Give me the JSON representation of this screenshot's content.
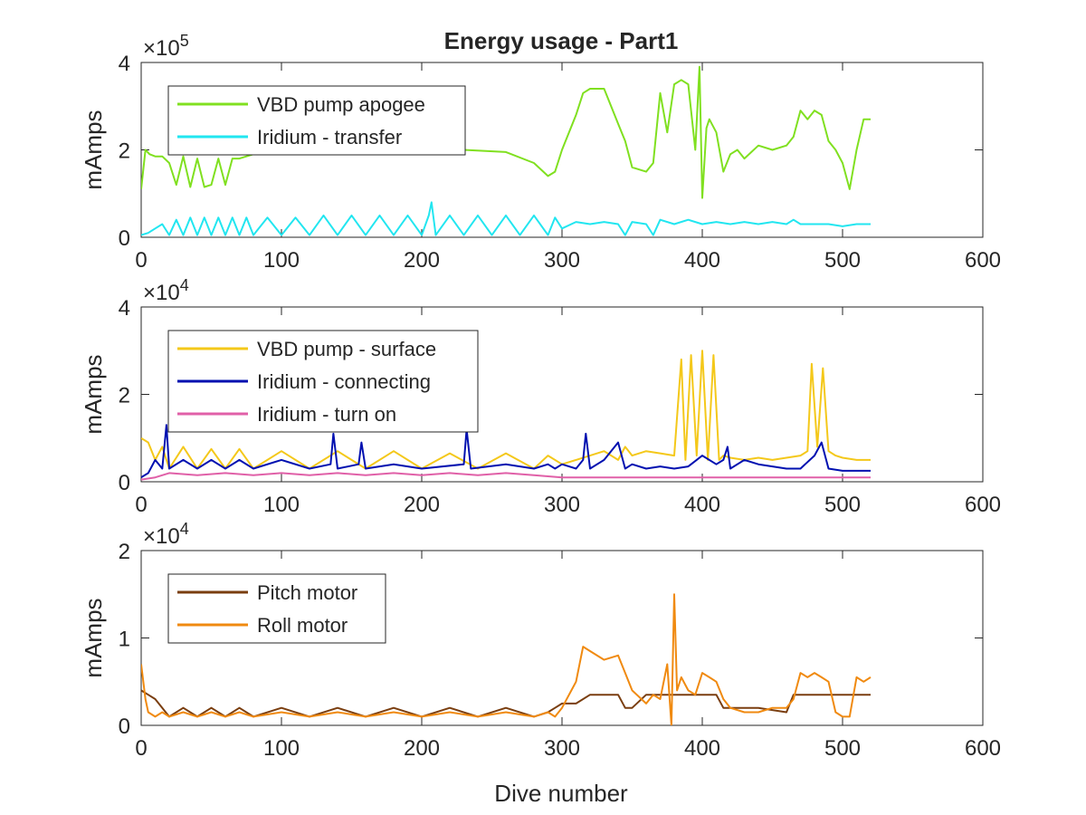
{
  "chart_data": {
    "type": "line",
    "title": "Energy usage - Part1",
    "xlabel": "Dive number",
    "panels": [
      {
        "id": "p1",
        "ylabel": "mAmps",
        "exponent_base": "×10",
        "exponent_power": "5",
        "xlim": [
          0,
          600
        ],
        "ylim": [
          0,
          4
        ],
        "xticks": [
          "0",
          "100",
          "200",
          "300",
          "400",
          "500",
          "600"
        ],
        "yticks": [
          "0",
          "2",
          "4"
        ],
        "grid": false,
        "legend_position": "top-left",
        "series": [
          {
            "name": "VBD pump apogee",
            "color": "#80e020",
            "x": [
              0,
              3,
              6,
              10,
              15,
              20,
              25,
              30,
              35,
              40,
              45,
              50,
              55,
              60,
              65,
              70,
              80,
              100,
              120,
              150,
              180,
              200,
              230,
              260,
              280,
              290,
              295,
              300,
              310,
              315,
              320,
              330,
              340,
              345,
              350,
              360,
              365,
              370,
              375,
              380,
              385,
              390,
              395,
              398,
              400,
              403,
              405,
              410,
              415,
              420,
              425,
              430,
              440,
              450,
              460,
              465,
              470,
              475,
              480,
              485,
              490,
              495,
              500,
              505,
              510,
              515,
              520
            ],
            "y": [
              1.1,
              2.0,
              1.9,
              1.85,
              1.85,
              1.7,
              1.2,
              1.85,
              1.15,
              1.8,
              1.15,
              1.2,
              1.8,
              1.2,
              1.8,
              1.8,
              1.9,
              1.95,
              2.0,
              2.05,
              2.0,
              2.05,
              2.0,
              1.95,
              1.7,
              1.4,
              1.5,
              2.0,
              2.8,
              3.3,
              3.4,
              3.4,
              2.6,
              2.2,
              1.6,
              1.5,
              1.7,
              3.3,
              2.4,
              3.5,
              3.6,
              3.5,
              2.0,
              3.9,
              0.9,
              2.5,
              2.7,
              2.4,
              1.5,
              1.9,
              2.0,
              1.8,
              2.1,
              2.0,
              2.1,
              2.3,
              2.9,
              2.7,
              2.9,
              2.8,
              2.2,
              2.0,
              1.7,
              1.1,
              2.0,
              2.7,
              2.7
            ]
          },
          {
            "name": "Iridium - transfer",
            "color": "#22e6f0",
            "x": [
              0,
              5,
              10,
              15,
              20,
              25,
              30,
              35,
              40,
              45,
              50,
              55,
              60,
              65,
              70,
              75,
              80,
              90,
              100,
              110,
              120,
              130,
              140,
              150,
              160,
              170,
              180,
              190,
              200,
              205,
              207,
              210,
              220,
              230,
              240,
              250,
              260,
              270,
              280,
              290,
              295,
              300,
              310,
              320,
              330,
              340,
              345,
              350,
              360,
              365,
              370,
              380,
              390,
              400,
              410,
              420,
              430,
              440,
              450,
              460,
              465,
              470,
              480,
              490,
              500,
              510,
              520
            ],
            "y": [
              0.05,
              0.1,
              0.2,
              0.3,
              0.05,
              0.4,
              0.05,
              0.45,
              0.05,
              0.45,
              0.05,
              0.45,
              0.05,
              0.45,
              0.05,
              0.45,
              0.05,
              0.45,
              0.05,
              0.45,
              0.05,
              0.5,
              0.05,
              0.5,
              0.05,
              0.5,
              0.05,
              0.5,
              0.05,
              0.5,
              0.8,
              0.05,
              0.5,
              0.05,
              0.5,
              0.05,
              0.5,
              0.05,
              0.5,
              0.05,
              0.45,
              0.2,
              0.35,
              0.3,
              0.35,
              0.3,
              0.05,
              0.35,
              0.3,
              0.05,
              0.4,
              0.3,
              0.4,
              0.3,
              0.35,
              0.3,
              0.35,
              0.3,
              0.35,
              0.3,
              0.4,
              0.3,
              0.3,
              0.3,
              0.25,
              0.3,
              0.3
            ]
          }
        ]
      },
      {
        "id": "p2",
        "ylabel": "mAmps",
        "exponent_base": "×10",
        "exponent_power": "4",
        "xlim": [
          0,
          600
        ],
        "ylim": [
          0,
          4
        ],
        "xticks": [
          "0",
          "100",
          "200",
          "300",
          "400",
          "500",
          "600"
        ],
        "yticks": [
          "0",
          "2",
          "4"
        ],
        "grid": false,
        "legend_position": "top-left",
        "series": [
          {
            "name": "VBD pump - surface",
            "color": "#f4c81a",
            "x": [
              0,
              5,
              10,
              15,
              20,
              30,
              40,
              50,
              60,
              70,
              80,
              100,
              120,
              140,
              160,
              180,
              200,
              220,
              240,
              260,
              280,
              290,
              300,
              310,
              320,
              330,
              340,
              345,
              350,
              360,
              370,
              380,
              385,
              388,
              392,
              396,
              400,
              404,
              408,
              412,
              415,
              420,
              430,
              440,
              450,
              460,
              470,
              475,
              478,
              482,
              486,
              490,
              495,
              500,
              510,
              520
            ],
            "y": [
              1.0,
              0.9,
              0.5,
              0.8,
              0.3,
              0.8,
              0.3,
              0.75,
              0.3,
              0.75,
              0.3,
              0.7,
              0.3,
              0.7,
              0.3,
              0.7,
              0.3,
              0.65,
              0.3,
              0.65,
              0.3,
              0.6,
              0.4,
              0.5,
              0.6,
              0.7,
              0.5,
              0.8,
              0.6,
              0.7,
              0.65,
              0.6,
              2.8,
              0.5,
              2.9,
              0.6,
              3.0,
              0.5,
              2.9,
              0.5,
              0.6,
              0.55,
              0.5,
              0.55,
              0.5,
              0.55,
              0.6,
              0.7,
              2.7,
              0.8,
              2.6,
              0.7,
              0.6,
              0.55,
              0.5,
              0.5
            ]
          },
          {
            "name": "Iridium - connecting",
            "color": "#0010b0",
            "x": [
              0,
              5,
              10,
              15,
              18,
              20,
              30,
              40,
              50,
              60,
              70,
              80,
              100,
              120,
              135,
              137,
              140,
              155,
              157,
              160,
              180,
              200,
              230,
              232,
              235,
              260,
              280,
              290,
              295,
              300,
              310,
              315,
              317,
              320,
              330,
              340,
              345,
              350,
              360,
              370,
              380,
              390,
              400,
              410,
              415,
              418,
              420,
              430,
              440,
              450,
              460,
              470,
              480,
              485,
              490,
              500,
              510,
              520
            ],
            "y": [
              0.1,
              0.2,
              0.5,
              0.3,
              1.3,
              0.3,
              0.5,
              0.3,
              0.5,
              0.3,
              0.5,
              0.3,
              0.5,
              0.3,
              0.4,
              1.1,
              0.3,
              0.4,
              0.9,
              0.3,
              0.4,
              0.3,
              0.4,
              1.2,
              0.3,
              0.4,
              0.3,
              0.4,
              0.3,
              0.4,
              0.3,
              0.5,
              1.1,
              0.3,
              0.5,
              0.9,
              0.3,
              0.4,
              0.3,
              0.35,
              0.3,
              0.35,
              0.6,
              0.4,
              0.5,
              0.8,
              0.3,
              0.5,
              0.4,
              0.35,
              0.3,
              0.3,
              0.6,
              0.9,
              0.3,
              0.25,
              0.25,
              0.25
            ]
          },
          {
            "name": "Iridium - turn on",
            "color": "#e060a8",
            "x": [
              0,
              10,
              20,
              40,
              60,
              80,
              100,
              120,
              140,
              160,
              180,
              200,
              220,
              240,
              260,
              280,
              300,
              320,
              340,
              360,
              380,
              400,
              420,
              440,
              460,
              480,
              500,
              520
            ],
            "y": [
              0.05,
              0.1,
              0.2,
              0.15,
              0.2,
              0.15,
              0.2,
              0.15,
              0.2,
              0.15,
              0.2,
              0.15,
              0.2,
              0.15,
              0.2,
              0.15,
              0.1,
              0.1,
              0.1,
              0.1,
              0.1,
              0.1,
              0.1,
              0.1,
              0.1,
              0.1,
              0.1,
              0.1
            ]
          }
        ]
      },
      {
        "id": "p3",
        "ylabel": "mAmps",
        "exponent_base": "×10",
        "exponent_power": "4",
        "xlim": [
          0,
          600
        ],
        "ylim": [
          0,
          2
        ],
        "xticks": [
          "0",
          "100",
          "200",
          "300",
          "400",
          "500",
          "600"
        ],
        "yticks": [
          "0",
          "1",
          "2"
        ],
        "grid": false,
        "legend_position": "top-left",
        "series": [
          {
            "name": "Pitch motor",
            "color": "#7a3e10",
            "x": [
              0,
              5,
              10,
              15,
              20,
              30,
              40,
              50,
              60,
              70,
              80,
              100,
              120,
              140,
              160,
              180,
              200,
              220,
              240,
              260,
              280,
              290,
              295,
              300,
              310,
              320,
              330,
              340,
              345,
              350,
              360,
              380,
              400,
              410,
              415,
              420,
              440,
              460,
              465,
              470,
              480,
              500,
              510,
              520
            ],
            "y": [
              0.4,
              0.35,
              0.3,
              0.2,
              0.1,
              0.2,
              0.1,
              0.2,
              0.1,
              0.2,
              0.1,
              0.2,
              0.1,
              0.2,
              0.1,
              0.2,
              0.1,
              0.2,
              0.1,
              0.2,
              0.1,
              0.15,
              0.2,
              0.25,
              0.25,
              0.35,
              0.35,
              0.35,
              0.2,
              0.2,
              0.35,
              0.35,
              0.35,
              0.35,
              0.2,
              0.2,
              0.2,
              0.15,
              0.35,
              0.35,
              0.35,
              0.35,
              0.35,
              0.35
            ]
          },
          {
            "name": "Roll motor",
            "color": "#f08a10",
            "x": [
              0,
              3,
              5,
              10,
              15,
              20,
              30,
              40,
              50,
              60,
              70,
              80,
              100,
              120,
              140,
              160,
              180,
              200,
              220,
              240,
              260,
              280,
              290,
              295,
              300,
              310,
              315,
              320,
              330,
              340,
              345,
              350,
              360,
              365,
              370,
              375,
              378,
              380,
              382,
              385,
              390,
              395,
              400,
              405,
              410,
              415,
              420,
              430,
              440,
              450,
              460,
              465,
              470,
              475,
              480,
              485,
              490,
              495,
              500,
              505,
              510,
              515,
              520
            ],
            "y": [
              0.7,
              0.3,
              0.15,
              0.1,
              0.15,
              0.1,
              0.15,
              0.1,
              0.15,
              0.1,
              0.15,
              0.1,
              0.15,
              0.1,
              0.15,
              0.1,
              0.15,
              0.1,
              0.15,
              0.1,
              0.15,
              0.1,
              0.15,
              0.1,
              0.2,
              0.5,
              0.9,
              0.85,
              0.75,
              0.8,
              0.6,
              0.4,
              0.25,
              0.35,
              0.3,
              0.7,
              0.0,
              1.5,
              0.4,
              0.55,
              0.4,
              0.35,
              0.6,
              0.55,
              0.5,
              0.3,
              0.2,
              0.15,
              0.15,
              0.2,
              0.2,
              0.3,
              0.6,
              0.55,
              0.6,
              0.55,
              0.5,
              0.15,
              0.1,
              0.1,
              0.55,
              0.5,
              0.55
            ]
          }
        ]
      }
    ]
  }
}
